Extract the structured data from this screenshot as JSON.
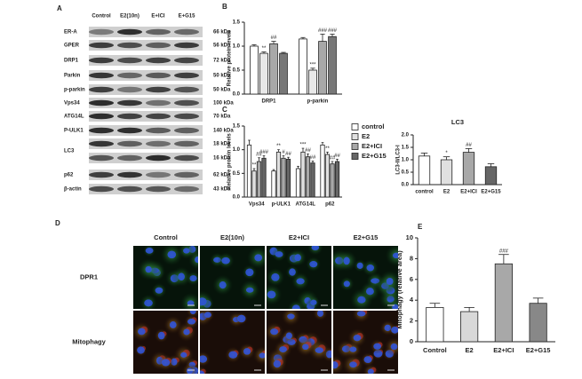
{
  "blot": {
    "panel": "A",
    "columns": [
      "Control",
      "E2(10n)",
      "E+ICI",
      "E+G15"
    ],
    "rows": [
      {
        "label": "ER-A",
        "kda": [
          "66 kDa"
        ]
      },
      {
        "label": "GPER",
        "kda": [
          "56 kDa"
        ]
      },
      {
        "label": "DRP1",
        "kda": [
          "72 kDa"
        ]
      },
      {
        "label": "Parkin",
        "kda": [
          "50 kDa"
        ]
      },
      {
        "label": "p-parkin",
        "kda": [
          "50 kDa"
        ]
      },
      {
        "label": "Vps34",
        "kda": [
          "100 kDa"
        ]
      },
      {
        "label": "ATG14L",
        "kda": [
          "70 kDa"
        ]
      },
      {
        "label": "P-ULK1",
        "kda": [
          "140 kDa"
        ]
      },
      {
        "label": "LC3",
        "kda": [
          "18 kDa",
          "16 kDa"
        ]
      },
      {
        "label": "p62",
        "kda": [
          "62 kDa"
        ]
      },
      {
        "label": "β-actin",
        "kda": [
          "43 kDa"
        ]
      }
    ]
  },
  "chart_data": [
    {
      "type": "bar",
      "panel": "B",
      "ylabel": "Relative protein levels",
      "categories": [
        "DRP1",
        "p-parkin"
      ],
      "ylim": [
        0,
        1.5
      ],
      "yticks": [
        {
          "value": 0,
          "label": "0.0"
        },
        {
          "value": 0.5,
          "label": "0.5"
        },
        {
          "value": 1,
          "label": "1.0"
        },
        {
          "value": 1.5,
          "label": "1.5"
        }
      ],
      "series": [
        {
          "color": "#ffffff",
          "values": [
            1.0,
            1.15
          ],
          "errors": [
            0.03,
            0.03
          ],
          "significance": [
            null,
            null
          ]
        },
        {
          "color": "#e8e8e8",
          "values": [
            0.85,
            0.5
          ],
          "errors": [
            0.03,
            0.04
          ],
          "significance": [
            "**",
            "***"
          ]
        },
        {
          "color": "#a8a8a8",
          "values": [
            1.05,
            1.1
          ],
          "errors": [
            0.05,
            0.15
          ],
          "significance": [
            "##",
            "###"
          ]
        },
        {
          "color": "#777777",
          "values": [
            0.85,
            1.2
          ],
          "errors": [
            0.02,
            0.05
          ],
          "significance": [
            null,
            "###"
          ]
        }
      ]
    },
    {
      "type": "bar",
      "panel": "C",
      "ylabel": "Relative protein levels",
      "categories": [
        "Vps34",
        "p-ULK1",
        "ATG14L",
        "p62"
      ],
      "ylim": [
        0,
        1.5
      ],
      "yticks": [
        {
          "value": 0,
          "label": "0.0"
        },
        {
          "value": 0.5,
          "label": "0.5"
        },
        {
          "value": 1,
          "label": "1.0"
        },
        {
          "value": 1.5,
          "label": "1.5"
        }
      ],
      "series": [
        {
          "name": "control",
          "color": "#ffffff",
          "values": [
            1.1,
            0.55,
            0.6,
            1.1
          ],
          "errors": [
            0.1,
            0.03,
            0.05,
            0.05
          ],
          "significance": [
            null,
            null,
            null,
            null
          ]
        },
        {
          "name": "E2",
          "color": "#e0e0e0",
          "values": [
            0.55,
            0.95,
            0.95,
            0.9
          ],
          "errors": [
            0.05,
            0.05,
            0.08,
            0.05
          ],
          "significance": [
            "**",
            "**",
            "***",
            "**"
          ]
        },
        {
          "name": "E2+ICI",
          "color": "#a8a8a8",
          "values": [
            0.75,
            0.82,
            0.85,
            0.7
          ],
          "errors": [
            0.08,
            0.05,
            0.06,
            0.05
          ],
          "significance": [
            "##",
            "#",
            "##",
            "##"
          ]
        },
        {
          "name": "E2+G15",
          "color": "#666666",
          "values": [
            0.82,
            0.8,
            0.72,
            0.75
          ],
          "errors": [
            0.05,
            0.04,
            0.04,
            0.05
          ],
          "significance": [
            "###",
            "##",
            "##",
            "##"
          ]
        }
      ]
    },
    {
      "type": "bar",
      "title": "LC3",
      "ylabel": "LC3-II/LC3-I",
      "categories": [
        "control",
        "E2",
        "E2+ICI",
        "E2+G15"
      ],
      "ylim": [
        0,
        2
      ],
      "yticks": [
        {
          "value": 0,
          "label": "0.0"
        },
        {
          "value": 0.5,
          "label": "0.5"
        },
        {
          "value": 1,
          "label": "1.0"
        },
        {
          "value": 1.5,
          "label": "1.5"
        },
        {
          "value": 2,
          "label": "2.0"
        }
      ],
      "colors": [
        "#ffffff",
        "#e0e0e0",
        "#a8a8a8",
        "#666666"
      ],
      "values": [
        1.15,
        1.0,
        1.3,
        0.72
      ],
      "errors": [
        0.12,
        0.12,
        0.15,
        0.12
      ],
      "significance": [
        null,
        "*",
        "##",
        null
      ]
    },
    {
      "type": "bar",
      "panel": "E",
      "ylabel": "Mitophagy (relative area)",
      "categories": [
        "Control",
        "E2",
        "E2+ICI",
        "E2+G15"
      ],
      "ylim": [
        0,
        10
      ],
      "yticks": [
        0,
        2,
        4,
        6,
        8,
        10
      ],
      "colors": [
        "#ffffff",
        "#d8d8d8",
        "#a8a8a8",
        "#888888"
      ],
      "values": [
        3.3,
        2.9,
        7.5,
        3.7
      ],
      "errors": [
        0.4,
        0.4,
        0.9,
        0.5
      ],
      "significance": [
        null,
        null,
        "###",
        null
      ]
    }
  ],
  "microscopy": {
    "panel": "D",
    "columns": [
      "Control",
      "E2(10n)",
      "E2+ICI",
      "E2+G15"
    ],
    "rows": [
      "DPR1",
      "Mitophagy"
    ]
  }
}
